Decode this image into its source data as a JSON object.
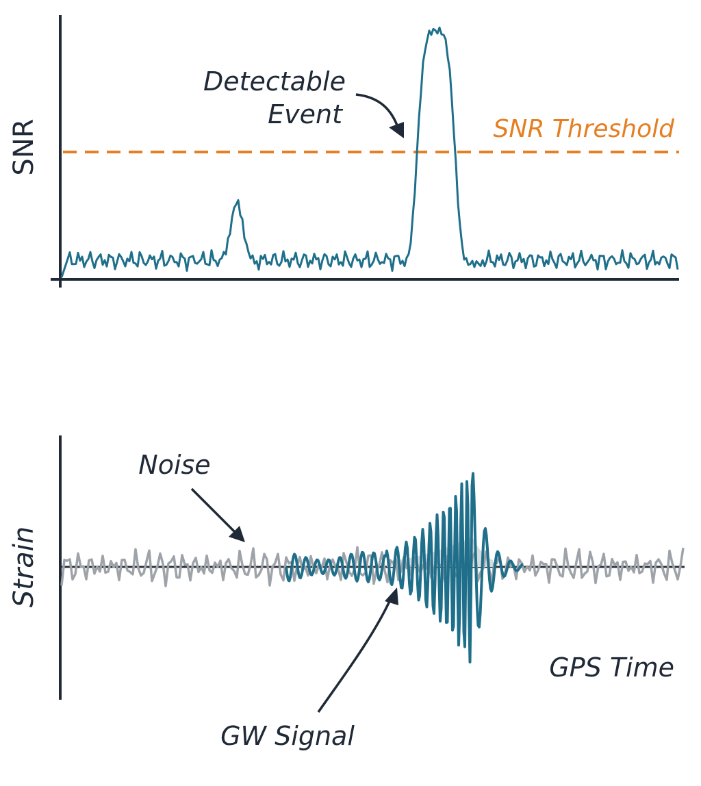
{
  "colors": {
    "signal": "#1f6f8b",
    "noise": "#9ea3aa",
    "threshold": "#e67e22",
    "axis": "#1f2937",
    "fill": "#d6dbe0"
  },
  "snr_panel": {
    "ylabel": "SNR",
    "threshold_label": "SNR Threshold",
    "event_label_line1": "Detectable",
    "event_label_line2": "Event"
  },
  "strain_panel": {
    "ylabel": "Strain",
    "xlabel": "GPS Time",
    "noise_label": "Noise",
    "signal_label": "GW Signal"
  }
}
